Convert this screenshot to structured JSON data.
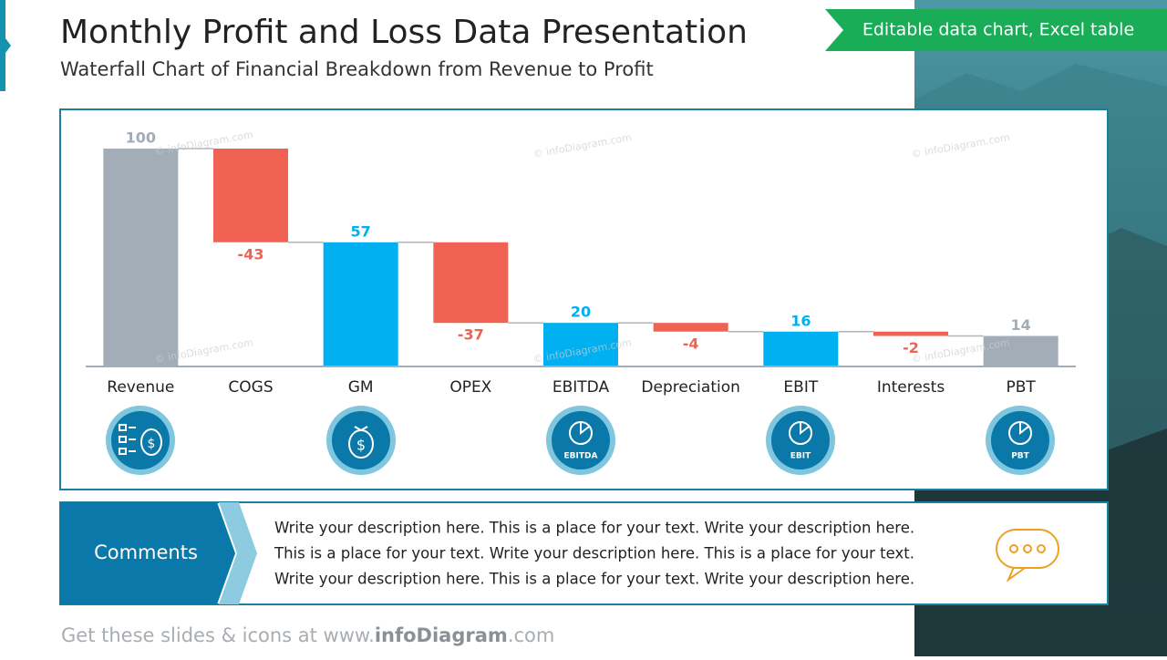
{
  "header": {
    "title": "Monthly Profit and Loss Data Presentation",
    "subtitle": "Waterfall Chart of Financial Breakdown from Revenue to Profit",
    "badge": "Editable data chart, Excel table"
  },
  "chart_data": {
    "type": "waterfall",
    "categories": [
      "Revenue",
      "COGS",
      "GM",
      "OPEX",
      "EBITDA",
      "Depreciation",
      "EBIT",
      "Interests",
      "PBT"
    ],
    "values": [
      100,
      -43,
      57,
      -37,
      20,
      -4,
      16,
      -2,
      14
    ],
    "measure": [
      "absolute",
      "relative",
      "absolute",
      "relative",
      "absolute",
      "relative",
      "absolute",
      "relative",
      "absolute"
    ],
    "colors": [
      "#a3adb8",
      "#f06352",
      "#00b0f0",
      "#f06352",
      "#00b0f0",
      "#f06352",
      "#00b0f0",
      "#f06352",
      "#a3adb8"
    ],
    "connectors": true
  },
  "icon_labels": [
    "EBITDA",
    "EBIT",
    "PBT"
  ],
  "comments": {
    "title": "Comments",
    "lines": [
      "Write your description here. This is a place for your text. Write your description here.",
      "This is a place for your text. Write your description here. This is a place for your text.",
      "Write your description here. This is a place for your text. Write your description here."
    ]
  },
  "watermark": "© infoDiagram.com",
  "footer": {
    "prefix": "Get these slides & icons at www.",
    "brand": "infoDiagram",
    "suffix": ".com"
  }
}
